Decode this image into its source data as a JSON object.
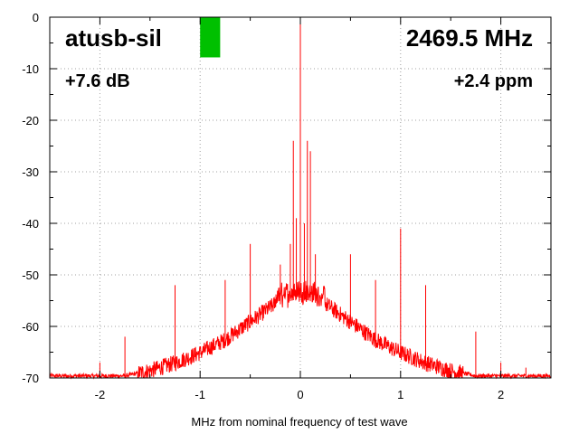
{
  "chart_data": {
    "type": "line",
    "title": "",
    "xlabel": "MHz from nominal frequency of test wave",
    "ylabel": "",
    "xlim": [
      -2.5,
      2.5
    ],
    "ylim": [
      -70,
      0
    ],
    "x_ticks": [
      -2,
      -1,
      0,
      1,
      2
    ],
    "y_ticks": [
      0,
      -10,
      -20,
      -30,
      -40,
      -50,
      -60,
      -70
    ],
    "x_tick_labels": [
      "-2",
      "-1",
      "0",
      "1",
      "2"
    ],
    "y_tick_labels": [
      "0",
      "-10",
      "-20",
      "-30",
      "-40",
      "-50",
      "-60",
      "-70"
    ],
    "grid": true,
    "series_color": "#ff0000",
    "indicator_color": "#00c000",
    "indicator_top_db": 0,
    "indicator_bottom_db": -7.8,
    "indicator_x_start": -1.0,
    "indicator_x_end": -0.8,
    "noise_floor": [
      {
        "x": -2.5,
        "y": -70
      },
      {
        "x": -2.0,
        "y": -70
      },
      {
        "x": -1.75,
        "y": -70
      },
      {
        "x": -1.5,
        "y": -69
      },
      {
        "x": -1.25,
        "y": -67.5
      },
      {
        "x": -1.0,
        "y": -65.5
      },
      {
        "x": -0.75,
        "y": -63
      },
      {
        "x": -0.5,
        "y": -59.5
      },
      {
        "x": -0.25,
        "y": -56
      },
      {
        "x": 0.0,
        "y": -54.5
      },
      {
        "x": 0.25,
        "y": -56
      },
      {
        "x": 0.5,
        "y": -59.5
      },
      {
        "x": 0.75,
        "y": -63
      },
      {
        "x": 1.0,
        "y": -65.5
      },
      {
        "x": 1.25,
        "y": -67.5
      },
      {
        "x": 1.5,
        "y": -69
      },
      {
        "x": 1.75,
        "y": -70
      },
      {
        "x": 2.0,
        "y": -70
      },
      {
        "x": 2.5,
        "y": -70
      }
    ],
    "spurs": [
      {
        "x": 0.0,
        "y": 0
      },
      {
        "x": -0.07,
        "y": -24
      },
      {
        "x": 0.07,
        "y": -24
      },
      {
        "x": 0.1,
        "y": -26
      },
      {
        "x": -0.04,
        "y": -39
      },
      {
        "x": 0.04,
        "y": -40
      },
      {
        "x": 0.15,
        "y": -46
      },
      {
        "x": -0.1,
        "y": -44
      },
      {
        "x": -0.2,
        "y": -48
      },
      {
        "x": -0.5,
        "y": -44
      },
      {
        "x": -0.75,
        "y": -51
      },
      {
        "x": -1.25,
        "y": -52
      },
      {
        "x": -1.75,
        "y": -62
      },
      {
        "x": -2.0,
        "y": -67
      },
      {
        "x": -2.5,
        "y": -66
      },
      {
        "x": 0.5,
        "y": -46
      },
      {
        "x": 0.75,
        "y": -51
      },
      {
        "x": 1.0,
        "y": -41
      },
      {
        "x": 1.25,
        "y": -52
      },
      {
        "x": 1.75,
        "y": -61
      },
      {
        "x": 2.0,
        "y": -67
      },
      {
        "x": 2.25,
        "y": -68
      }
    ],
    "annotations": {
      "device": "atusb-sil",
      "frequency": "2469.5 MHz",
      "power": "+7.6 dB",
      "offset": "+2.4 ppm"
    }
  }
}
